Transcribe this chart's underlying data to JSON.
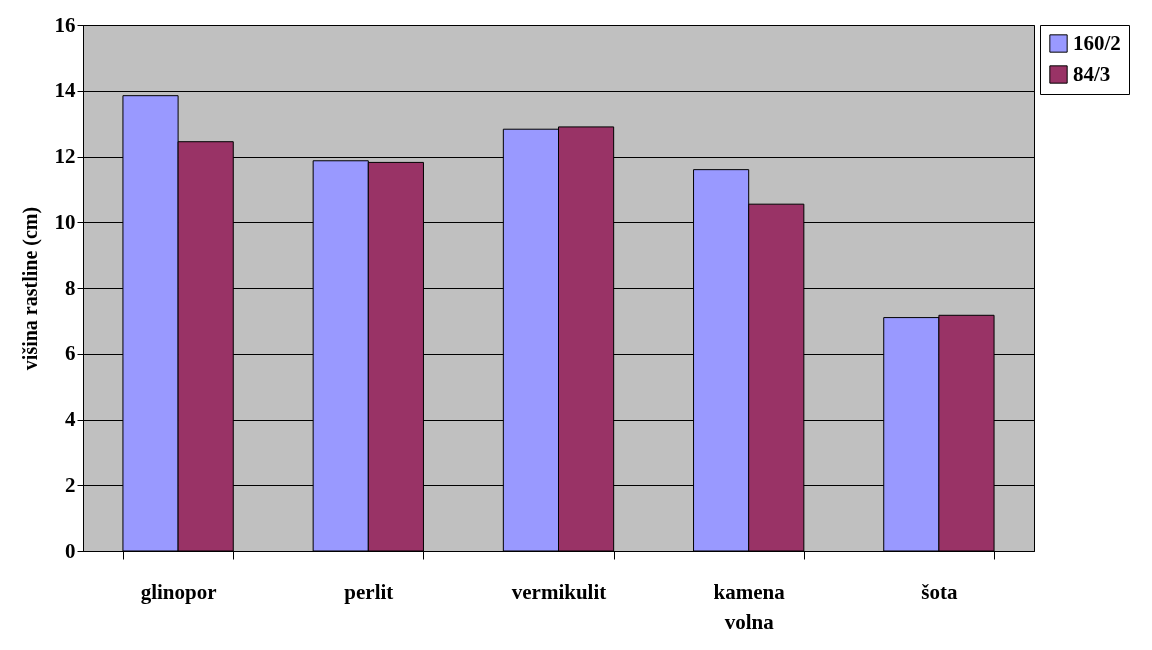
{
  "chart_data": {
    "type": "bar",
    "ylabel": "višina rastline (cm)",
    "categories": [
      "glinopor",
      "perlit",
      "vermikulit",
      "kamena volna",
      "šota"
    ],
    "series": [
      {
        "name": "160/2",
        "color": "#9999ff",
        "values": [
          13.85,
          11.87,
          12.83,
          11.6,
          7.1
        ]
      },
      {
        "name": "84/3",
        "color": "#993366",
        "values": [
          12.45,
          11.82,
          12.9,
          10.55,
          7.17
        ]
      }
    ],
    "ylim": [
      0,
      16
    ],
    "yticks": [
      0,
      2,
      4,
      6,
      8,
      10,
      12,
      14,
      16
    ],
    "grid": "y",
    "legend": "right"
  }
}
